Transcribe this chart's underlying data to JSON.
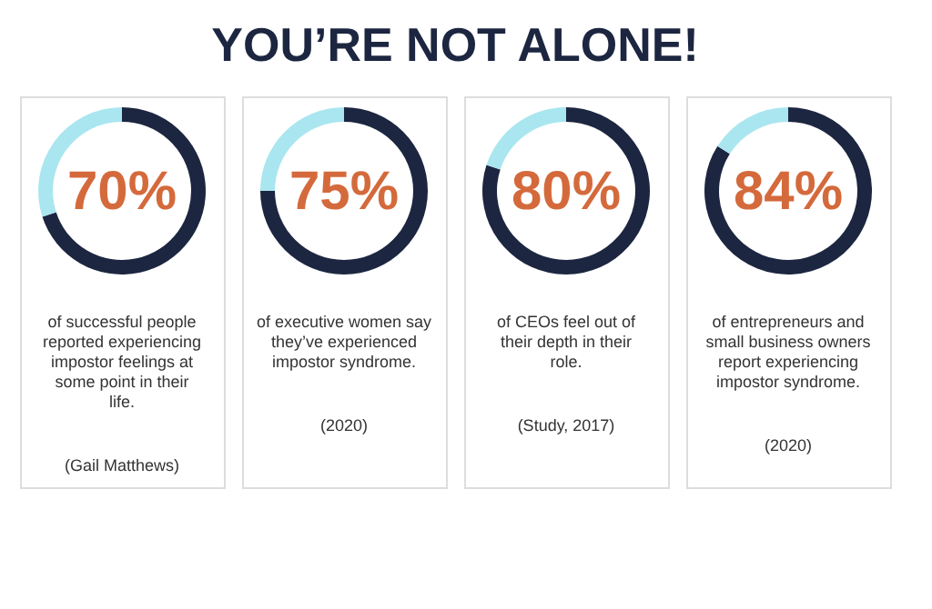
{
  "chart_data": [
    {
      "type": "donut",
      "title": "YOU’RE NOT ALONE!",
      "categories": [
        null,
        null
      ],
      "values": [
        70,
        30
      ],
      "colors": [
        "#1c2640",
        "#a9e6f0"
      ],
      "value_labels": [
        "70%",
        null
      ],
      "annotations": [
        "of successful people reported experiencing impostor feelings at some point in their life.",
        "(Gail Matthews)"
      ]
    },
    {
      "type": "donut",
      "categories": [
        null,
        null
      ],
      "values": [
        75,
        25
      ],
      "colors": [
        "#1c2640",
        "#a9e6f0"
      ],
      "value_labels": [
        "75%",
        null
      ],
      "annotations": [
        "of executive women say they’ve experienced impostor syndrome.",
        "(2020)"
      ]
    },
    {
      "type": "donut",
      "categories": [
        null,
        null
      ],
      "values": [
        80,
        20
      ],
      "colors": [
        "#1c2640",
        "#a9e6f0"
      ],
      "value_labels": [
        "80%",
        null
      ],
      "annotations": [
        "of CEOs feel out of their depth in their role.",
        "(Study, 2017)"
      ]
    },
    {
      "type": "donut",
      "categories": [
        null,
        null
      ],
      "values": [
        84,
        16
      ],
      "colors": [
        "#1c2640",
        "#a9e6f0"
      ],
      "value_labels": [
        "84%",
        null
      ],
      "annotations": [
        "of entrepreneurs and small business owners report experiencing impostor syndrome.",
        "(2020)"
      ]
    }
  ]
}
